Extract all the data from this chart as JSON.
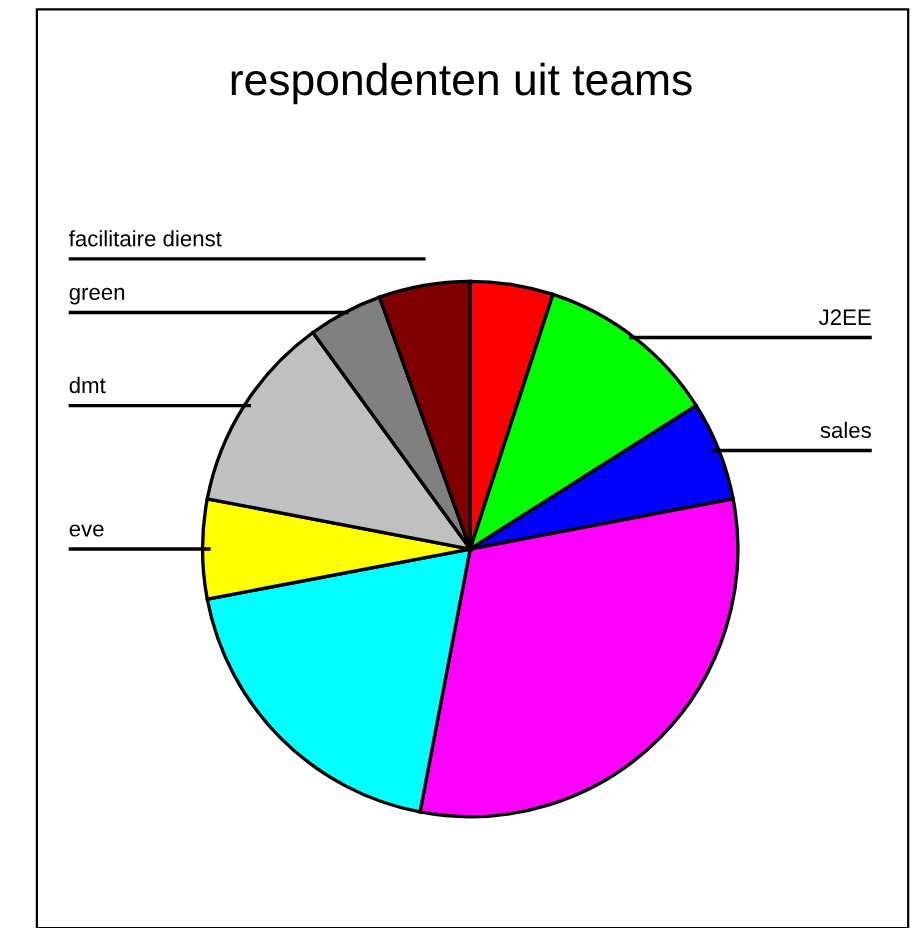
{
  "chart_data": {
    "type": "pie",
    "title": "respondenten uit teams",
    "categories": [
      null,
      "J2EE",
      "sales",
      null,
      null,
      "eve",
      "dmt",
      "green",
      "facilitaire dienst"
    ],
    "values": [
      5,
      11,
      6,
      31,
      19,
      6,
      12,
      4.5,
      5.5
    ],
    "colors": [
      "#ff0000",
      "#00ff00",
      "#0000ff",
      "#ff00ff",
      "#00ffff",
      "#ffff00",
      "#c0c0c0",
      "#808080",
      "#800000"
    ]
  }
}
